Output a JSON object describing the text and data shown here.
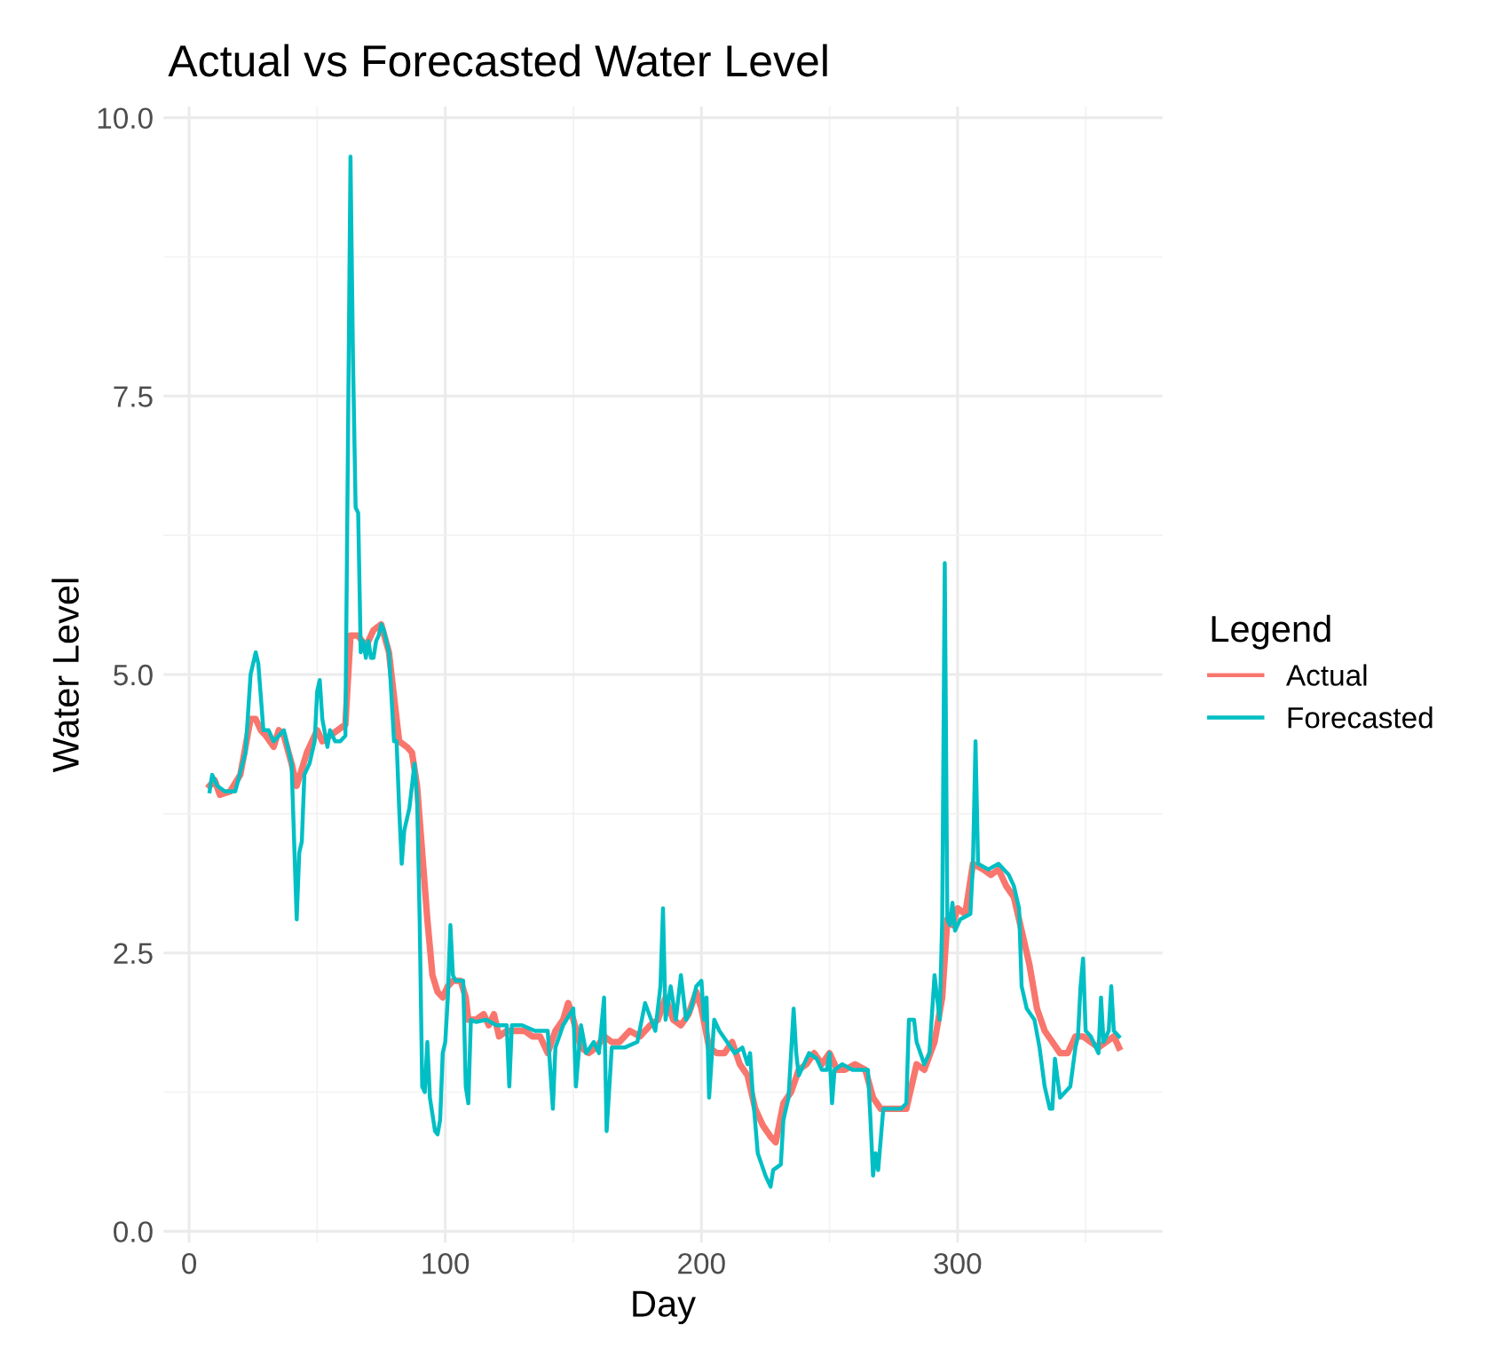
{
  "chart_data": {
    "type": "line",
    "title": "Actual vs Forecasted Water Level",
    "xlabel": "Day",
    "ylabel": "Water Level",
    "legend_title": "Legend",
    "legend": "right",
    "grid": true,
    "line_style": "solid",
    "xlim": [
      -10,
      380
    ],
    "xticks": [
      0,
      100,
      200,
      300
    ],
    "ylim": [
      -0.1,
      10.1
    ],
    "yticks": [
      {
        "value": 0,
        "label": "0.0"
      },
      {
        "value": 2.5,
        "label": "2.5"
      },
      {
        "value": 5,
        "label": "5.0"
      },
      {
        "value": 7.5,
        "label": "7.5"
      },
      {
        "value": 10,
        "label": "10.0"
      }
    ],
    "series": [
      {
        "name": "Actual",
        "color": "#f8766d",
        "x": [
          8,
          10,
          12,
          16,
          20,
          24,
          26,
          28,
          30,
          33,
          35,
          37,
          40,
          42,
          44,
          46,
          48,
          50,
          52,
          55,
          58,
          61,
          63,
          66,
          69,
          72,
          75,
          78,
          80,
          82,
          85,
          87,
          89,
          91,
          93,
          95,
          97,
          99,
          101,
          103,
          106,
          108,
          109,
          112,
          115,
          117,
          119,
          121,
          124,
          128,
          131,
          134,
          137,
          140,
          143,
          146,
          148,
          150,
          153,
          156,
          159,
          162,
          165,
          168,
          172,
          176,
          180,
          183,
          186,
          189,
          192,
          195,
          198,
          200,
          203,
          206,
          209,
          212,
          215,
          218,
          221,
          224,
          227,
          229,
          232,
          235,
          238,
          241,
          244,
          247,
          250,
          253,
          256,
          260,
          264,
          267,
          270,
          275,
          280,
          284,
          287,
          291,
          294,
          296,
          298,
          300,
          303,
          306,
          310,
          313,
          316,
          319,
          322,
          325,
          328,
          331,
          334,
          337,
          340,
          343,
          346,
          349,
          352,
          355,
          358,
          361,
          363
        ],
        "values": [
          4.0,
          4.05,
          3.92,
          3.95,
          4.1,
          4.6,
          4.6,
          4.5,
          4.45,
          4.35,
          4.5,
          4.45,
          4.2,
          4.0,
          4.15,
          4.3,
          4.4,
          4.5,
          4.4,
          4.45,
          4.5,
          4.55,
          5.35,
          5.35,
          5.25,
          5.4,
          5.45,
          5.2,
          4.8,
          4.4,
          4.35,
          4.3,
          4.0,
          3.4,
          2.8,
          2.3,
          2.15,
          2.1,
          2.2,
          2.25,
          2.25,
          2.1,
          1.9,
          1.9,
          1.95,
          1.85,
          1.95,
          1.75,
          1.8,
          1.8,
          1.8,
          1.75,
          1.75,
          1.6,
          1.8,
          1.9,
          2.05,
          1.9,
          1.65,
          1.6,
          1.65,
          1.75,
          1.7,
          1.7,
          1.8,
          1.75,
          1.85,
          1.9,
          2.1,
          1.9,
          1.85,
          1.95,
          2.15,
          2.0,
          1.65,
          1.6,
          1.6,
          1.7,
          1.5,
          1.4,
          1.1,
          0.95,
          0.85,
          0.8,
          1.15,
          1.25,
          1.45,
          1.5,
          1.6,
          1.5,
          1.6,
          1.45,
          1.45,
          1.5,
          1.45,
          1.2,
          1.1,
          1.1,
          1.1,
          1.5,
          1.45,
          1.7,
          2.1,
          2.8,
          2.75,
          2.9,
          2.85,
          3.3,
          3.25,
          3.2,
          3.25,
          3.1,
          3.0,
          2.7,
          2.4,
          2.0,
          1.8,
          1.7,
          1.6,
          1.6,
          1.75,
          1.75,
          1.7,
          1.65,
          1.7,
          1.75,
          1.65
        ]
      },
      {
        "name": "Forecasted",
        "color": "#00bfc4",
        "x": [
          8,
          9,
          11,
          14,
          18,
          22,
          24,
          26,
          27,
          29,
          31,
          33,
          35,
          37,
          40,
          42,
          43,
          44,
          45,
          47,
          49,
          50,
          51,
          52,
          54,
          55,
          57,
          59,
          61,
          63,
          64,
          65,
          66,
          67,
          68,
          69,
          70,
          71,
          72,
          73,
          74,
          75,
          76,
          77,
          78,
          79,
          80,
          81,
          82,
          83,
          84,
          86,
          88,
          89,
          90,
          91,
          92,
          93,
          94,
          96,
          97,
          98,
          99,
          100,
          101,
          102,
          103,
          104,
          107,
          108,
          109,
          110,
          112,
          116,
          120,
          124,
          125,
          126,
          130,
          135,
          140,
          142,
          143,
          146,
          150,
          151,
          153,
          155,
          158,
          160,
          162,
          163,
          165,
          170,
          175,
          178,
          182,
          184,
          185,
          186,
          188,
          190,
          192,
          194,
          196,
          198,
          200,
          201,
          202,
          203,
          205,
          207,
          210,
          213,
          216,
          218,
          219,
          220,
          222,
          225,
          227,
          228,
          231,
          232,
          234,
          236,
          237,
          238,
          240,
          242,
          245,
          247,
          249,
          250,
          251,
          252,
          255,
          259,
          263,
          265,
          266,
          267,
          268,
          269,
          271,
          275,
          278,
          280,
          281,
          283,
          284,
          287,
          289,
          291,
          293,
          294,
          295,
          296,
          297,
          298,
          299,
          301,
          305,
          306,
          307,
          308,
          312,
          316,
          320,
          322,
          324,
          325,
          327,
          330,
          332,
          334,
          336,
          337,
          338,
          340,
          342,
          344,
          346,
          347,
          348,
          349,
          350,
          352,
          354,
          355,
          356,
          357,
          359,
          360,
          361,
          363
        ],
        "values": [
          3.95,
          4.1,
          4.0,
          3.95,
          3.95,
          4.3,
          5.0,
          5.2,
          5.1,
          4.5,
          4.5,
          4.4,
          4.45,
          4.5,
          4.2,
          2.8,
          3.4,
          3.5,
          4.1,
          4.2,
          4.4,
          4.85,
          4.95,
          4.6,
          4.35,
          4.5,
          4.4,
          4.4,
          4.45,
          9.65,
          7.8,
          6.5,
          6.45,
          5.2,
          5.3,
          5.15,
          5.3,
          5.15,
          5.15,
          5.3,
          5.35,
          5.45,
          5.4,
          5.3,
          5.2,
          4.8,
          4.4,
          4.4,
          3.8,
          3.3,
          3.6,
          3.8,
          4.2,
          3.9,
          2.8,
          1.3,
          1.25,
          1.7,
          1.2,
          0.9,
          0.87,
          1.0,
          1.6,
          1.7,
          2.1,
          2.75,
          2.3,
          2.25,
          2.25,
          1.3,
          1.15,
          1.9,
          1.88,
          1.9,
          1.85,
          1.85,
          1.3,
          1.85,
          1.85,
          1.8,
          1.8,
          1.1,
          1.65,
          1.85,
          2.0,
          1.3,
          1.85,
          1.6,
          1.7,
          1.6,
          2.1,
          0.9,
          1.65,
          1.65,
          1.7,
          2.05,
          1.8,
          2.2,
          2.9,
          1.9,
          2.2,
          1.9,
          2.3,
          1.9,
          2.0,
          2.2,
          2.25,
          1.9,
          2.1,
          1.2,
          1.9,
          1.8,
          1.7,
          1.6,
          1.65,
          1.5,
          1.6,
          1.25,
          0.7,
          0.5,
          0.4,
          0.55,
          0.6,
          1.0,
          1.2,
          2.0,
          1.6,
          1.4,
          1.5,
          1.6,
          1.55,
          1.45,
          1.45,
          1.6,
          1.15,
          1.45,
          1.5,
          1.45,
          1.45,
          1.45,
          1.0,
          0.5,
          0.7,
          0.55,
          1.1,
          1.1,
          1.1,
          1.15,
          1.9,
          1.9,
          1.7,
          1.5,
          1.6,
          2.3,
          1.9,
          2.8,
          6.0,
          2.8,
          2.75,
          2.95,
          2.7,
          2.8,
          2.85,
          3.3,
          4.4,
          3.3,
          3.25,
          3.3,
          3.2,
          3.1,
          2.9,
          2.2,
          2.0,
          1.9,
          1.65,
          1.3,
          1.1,
          1.1,
          1.55,
          1.2,
          1.25,
          1.3,
          1.65,
          1.75,
          2.2,
          2.45,
          1.8,
          1.75,
          1.65,
          1.6,
          2.1,
          1.7,
          1.8,
          2.2,
          1.8,
          1.75
        ]
      }
    ]
  }
}
